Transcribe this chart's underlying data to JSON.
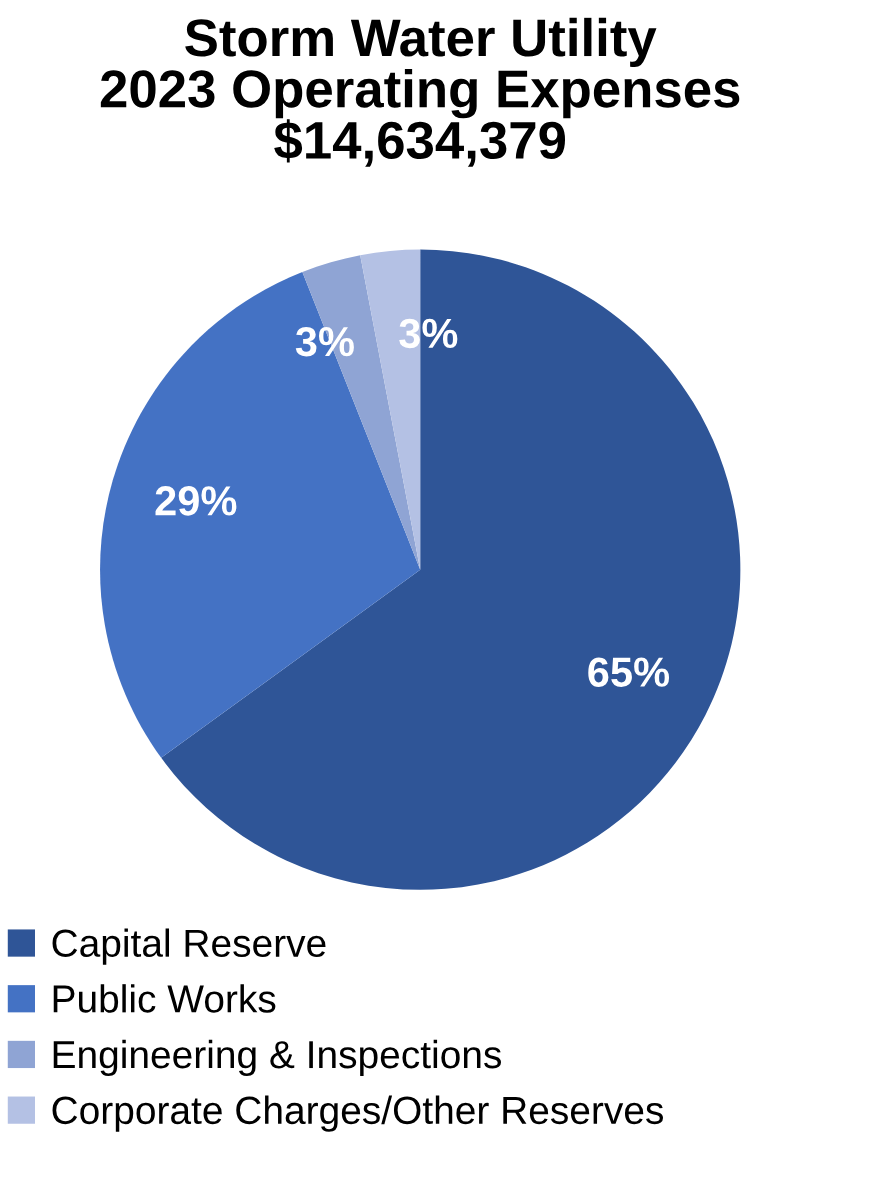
{
  "chart_data": {
    "type": "pie",
    "title": "Storm Water Utility\n2023 Operating Expenses\n$14,634,379",
    "categories": [
      "Capital Reserve",
      "Public Works",
      "Engineering & Inspections",
      "Corporate Charges/Other Reserves"
    ],
    "values": [
      65,
      29,
      3,
      3
    ],
    "colors": [
      "#2f5597",
      "#4472c4",
      "#8fa4d4",
      "#b4c1e4"
    ],
    "value_labels": [
      "65%",
      "29%",
      "3%",
      "3%"
    ],
    "legend": "bottom"
  }
}
